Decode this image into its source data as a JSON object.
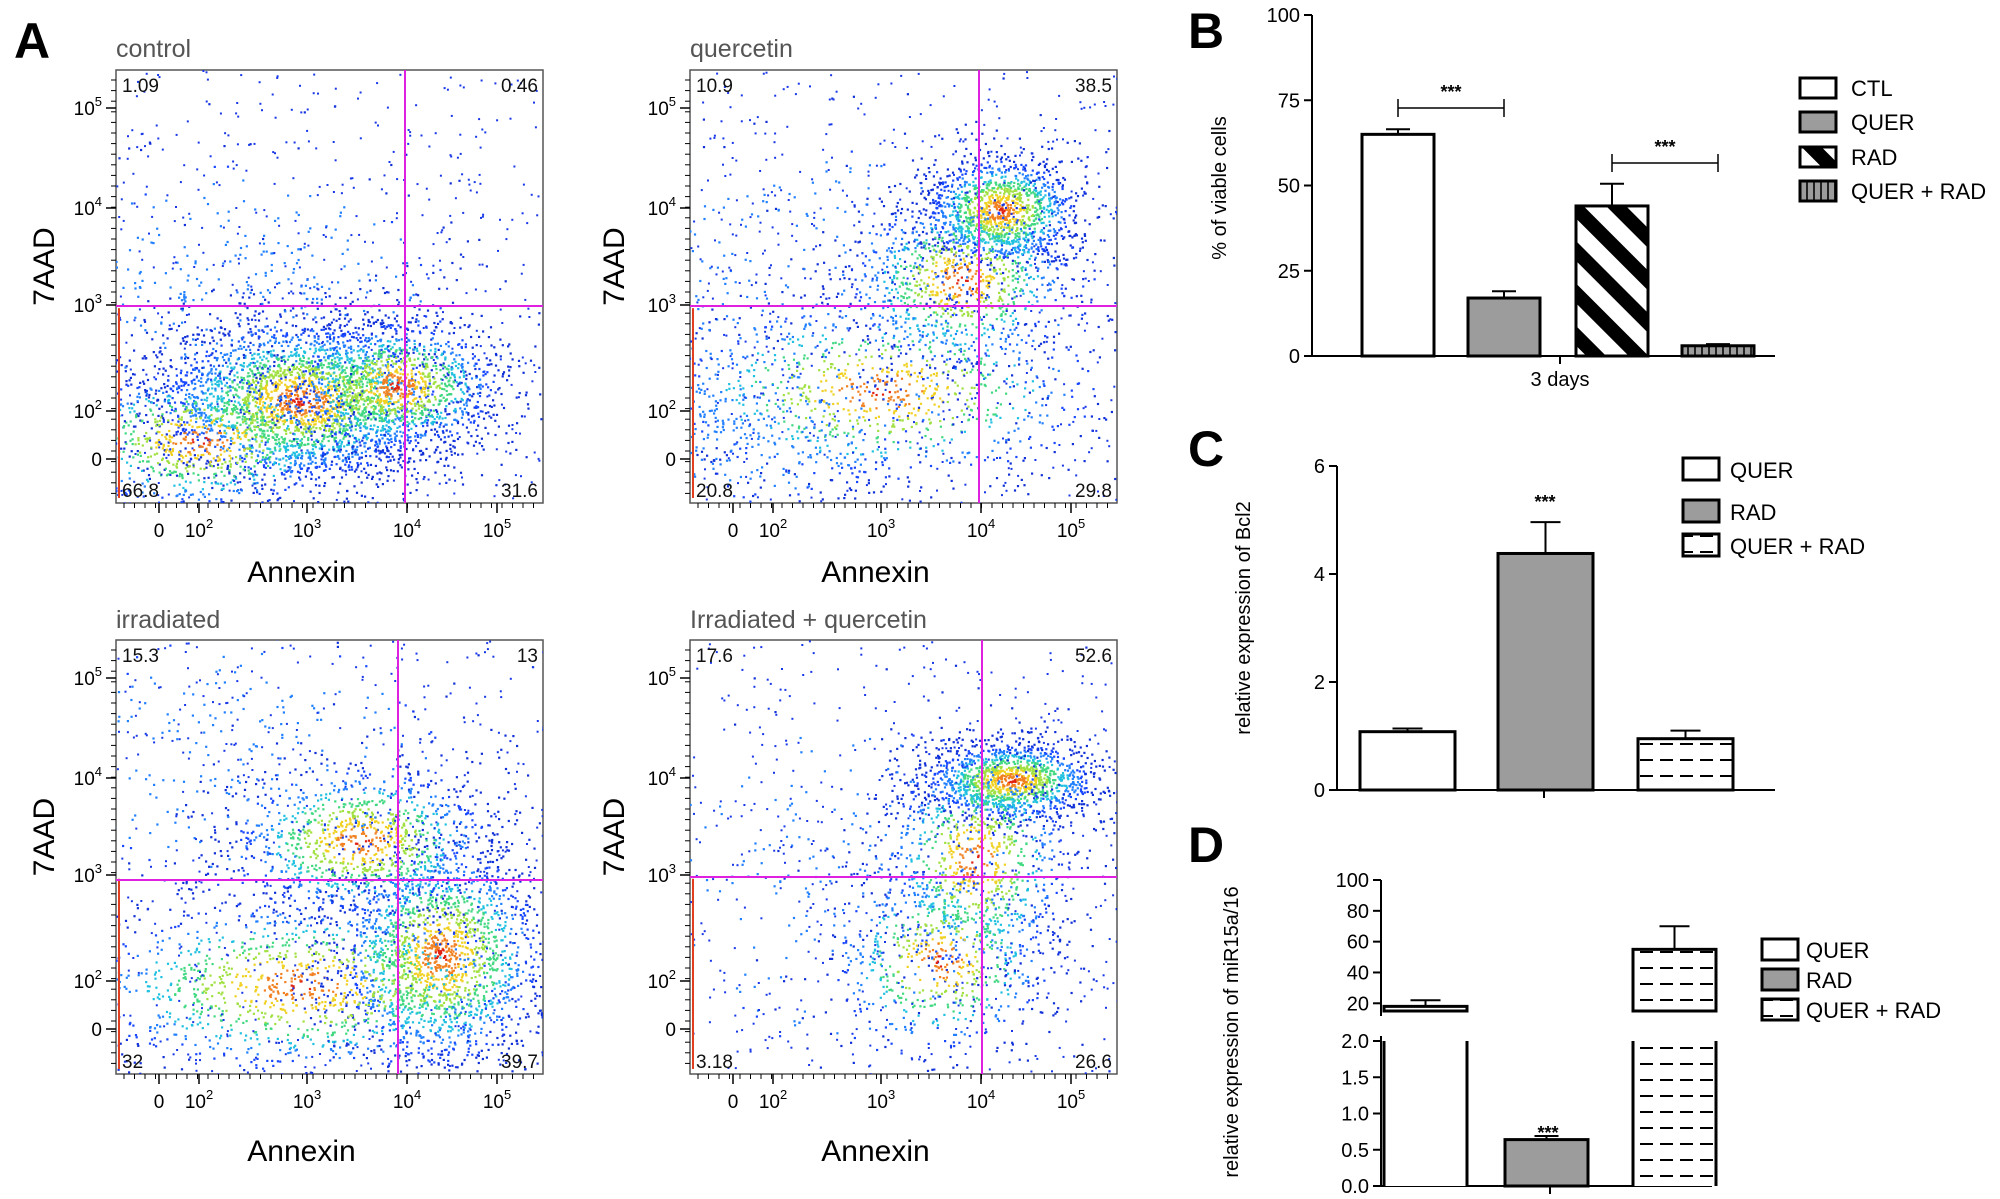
{
  "panel_labels": {
    "A": "A",
    "B": "B",
    "C": "C",
    "D": "D"
  },
  "colors": {
    "gate": "#e020e0",
    "bar_gray": "#9c9c9c",
    "axis": "#000000"
  },
  "chart_data": [
    {
      "type": "scatter",
      "panel": "A",
      "title": "control",
      "xlabel": "Annexin",
      "ylabel": "7AAD",
      "x_ticks": [
        "0",
        "10^2",
        "10^3",
        "10^4",
        "10^5"
      ],
      "y_ticks": [
        "0",
        "10^2",
        "10^3",
        "10^4",
        "10^5"
      ],
      "quadrants": {
        "UL": "1.09",
        "UR": "0.46",
        "LL": "66.8",
        "LR": "31.6"
      }
    },
    {
      "type": "scatter",
      "panel": "A",
      "title": "quercetin",
      "xlabel": "Annexin",
      "ylabel": "7AAD",
      "x_ticks": [
        "0",
        "10^2",
        "10^3",
        "10^4",
        "10^5"
      ],
      "y_ticks": [
        "0",
        "10^2",
        "10^3",
        "10^4",
        "10^5"
      ],
      "quadrants": {
        "UL": "10.9",
        "UR": "38.5",
        "LL": "20.8",
        "LR": "29.8"
      }
    },
    {
      "type": "scatter",
      "panel": "A",
      "title": "irradiated",
      "xlabel": "Annexin",
      "ylabel": "7AAD",
      "x_ticks": [
        "0",
        "10^2",
        "10^3",
        "10^4",
        "10^5"
      ],
      "y_ticks": [
        "0",
        "10^2",
        "10^3",
        "10^4",
        "10^5"
      ],
      "quadrants": {
        "UL": "15.3",
        "UR": "13",
        "LL": "32",
        "LR": "39.7"
      }
    },
    {
      "type": "scatter",
      "panel": "A",
      "title": "Irradiated + quercetin",
      "xlabel": "Annexin",
      "ylabel": "7AAD",
      "x_ticks": [
        "0",
        "10^2",
        "10^3",
        "10^4",
        "10^5"
      ],
      "y_ticks": [
        "0",
        "10^2",
        "10^3",
        "10^4",
        "10^5"
      ],
      "quadrants": {
        "UL": "17.6",
        "UR": "52.6",
        "LL": "3.18",
        "LR": "26.6"
      }
    },
    {
      "type": "bar",
      "panel": "B",
      "categories": [
        "CTL",
        "QUER",
        "RAD",
        "QUER + RAD"
      ],
      "values": [
        65,
        17,
        44,
        3
      ],
      "errors": [
        1.5,
        2,
        6.5,
        0.5
      ],
      "xlabel": "3 days",
      "ylabel": "% of viable cells",
      "ylim": [
        0,
        100
      ],
      "y_ticks": [
        0,
        25,
        50,
        75,
        100
      ],
      "significance": [
        {
          "from": "CTL",
          "to": "QUER",
          "label": "***"
        },
        {
          "from": "RAD",
          "to": "QUER + RAD",
          "label": "***"
        }
      ],
      "legend": [
        "CTL",
        "QUER",
        "RAD",
        "QUER + RAD"
      ]
    },
    {
      "type": "bar",
      "panel": "C",
      "categories": [
        "QUER",
        "RAD",
        "QUER + RAD"
      ],
      "values": [
        1.08,
        4.38,
        0.95
      ],
      "errors": [
        0.06,
        0.58,
        0.15
      ],
      "ylabel": "relative expression of Bcl2",
      "ylim": [
        0,
        6
      ],
      "y_ticks": [
        0,
        2,
        4,
        6
      ],
      "significance": [
        {
          "category": "RAD",
          "label": "***"
        }
      ],
      "legend": [
        "QUER",
        "RAD",
        "QUER + RAD"
      ]
    },
    {
      "type": "bar",
      "panel": "D",
      "categories": [
        "QUER",
        "RAD",
        "QUER + RAD"
      ],
      "values": [
        18,
        0.64,
        55
      ],
      "errors": [
        4,
        0.05,
        15
      ],
      "ylabel": "relative expression of miR15a/16",
      "y_ticks_lower": [
        "0.0",
        "0.5",
        "1.0",
        "1.5",
        "2.0"
      ],
      "y_ticks_upper": [
        "20",
        "40",
        "60",
        "80",
        "100"
      ],
      "broken_axis": {
        "lower": [
          0,
          2
        ],
        "upper": [
          15,
          100
        ]
      },
      "significance": [
        {
          "category": "RAD",
          "label": "***"
        }
      ],
      "legend": [
        "QUER",
        "RAD",
        "QUER + RAD"
      ]
    }
  ]
}
